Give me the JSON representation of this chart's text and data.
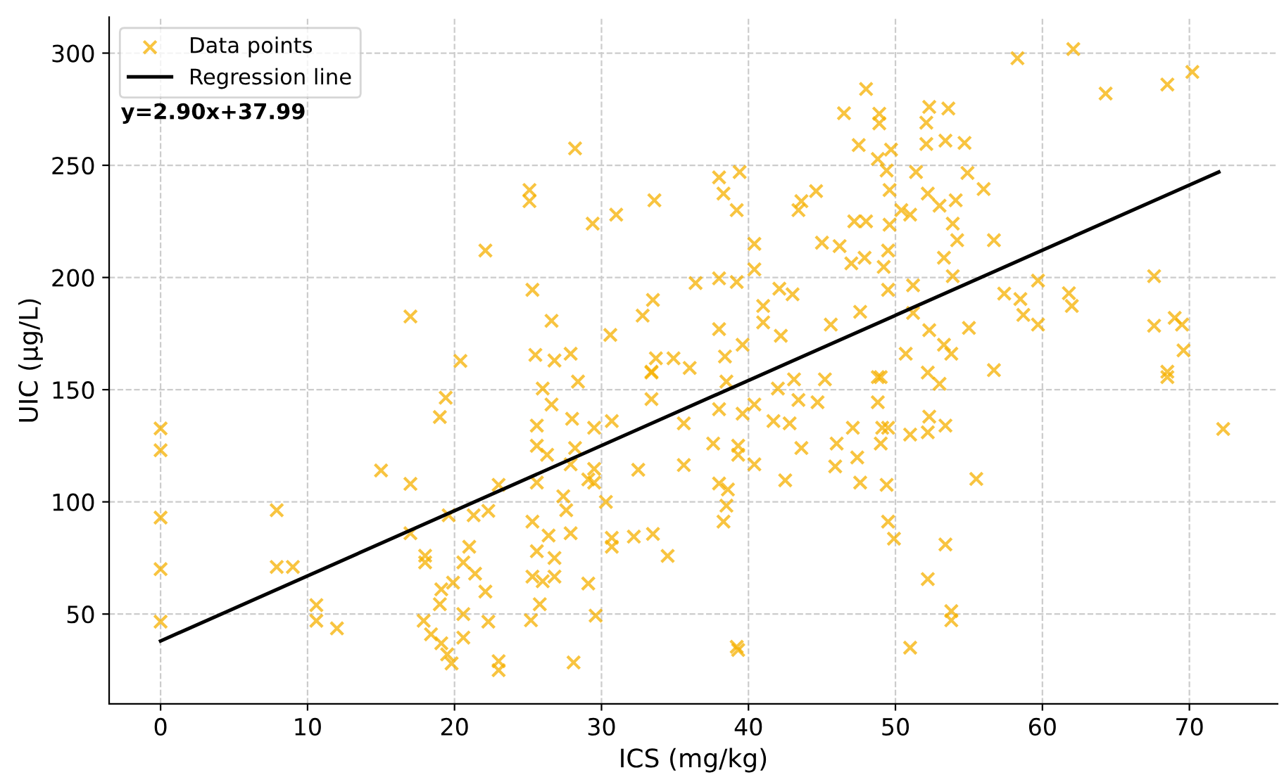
{
  "chart_data": {
    "type": "scatter",
    "xlabel": "ICS (mg/kg)",
    "ylabel": "UIC (μg/L)",
    "xlim": [
      -3.5,
      76
    ],
    "ylim": [
      10,
      316
    ],
    "xticks": [
      0,
      10,
      20,
      30,
      40,
      50,
      60,
      70
    ],
    "yticks": [
      50,
      100,
      150,
      200,
      250,
      300
    ],
    "grid": true,
    "legend": "top left",
    "annotations": [
      "y=2.90x+37.99"
    ],
    "series": [
      {
        "name": "Data points",
        "color": "#f5b000",
        "marker": "cross",
        "x": [
          17.0,
          22.1,
          20.4,
          25.1,
          25.1,
          0,
          0,
          0,
          0,
          0,
          7.9,
          7.9,
          9.0,
          10.6,
          10.6,
          12.0,
          15.0,
          17.0,
          17.0,
          19.0,
          19.4,
          18.0,
          18.0,
          23.0,
          19.6,
          21.3,
          22.3,
          21.0,
          20.6,
          21.4,
          22.1,
          19.9,
          19.1,
          19.0,
          20.6,
          17.9,
          18.4,
          19.1,
          19.5,
          19.8,
          20.6,
          22.3,
          23.0,
          23.0,
          28.2,
          29.4,
          31.0,
          33.6,
          38.0,
          39.4,
          38.3,
          39.2,
          40.4,
          40.4,
          36.4,
          38.0,
          39.2,
          25.3,
          43.4,
          43.6,
          44.6,
          42.1,
          43.0,
          45.0,
          46.2,
          47.0,
          47.9,
          47.2,
          48.0,
          46.5,
          48.0,
          48.9,
          48.9,
          47.5,
          48.8,
          49.4,
          49.6,
          49.6,
          49.5,
          49.2,
          49.5,
          49.7,
          51.2,
          47.6,
          45.6,
          42.2,
          41.0,
          41.0,
          38.0,
          39.6,
          38.4,
          36.0,
          34.9,
          33.7,
          33.4,
          33.5,
          32.8,
          30.6,
          28.4,
          26.6,
          25.5,
          27.9,
          26.8,
          52.3,
          52.1,
          52.1,
          51.4,
          52.2,
          50.4,
          51.0,
          50.7,
          52.3,
          26.0,
          26.6,
          25.6,
          25.6,
          26.3,
          28.0,
          28.2,
          27.9,
          29.5,
          29.5,
          29.5,
          29.1,
          25.6,
          30.7,
          33.4,
          33.4,
          35.6,
          32.5,
          35.6,
          30.3,
          27.4,
          27.6,
          25.3,
          27.9,
          26.4,
          25.6,
          26.8,
          25.3,
          26.8,
          26.0,
          25.8,
          25.2,
          28.1,
          29.1,
          29.6,
          30.7,
          30.7,
          32.2,
          33.5,
          34.5,
          38.0,
          38.6,
          38.5,
          38.3,
          39.2,
          39.3,
          37.6,
          38.0,
          39.3,
          39.3,
          40.4,
          39.6,
          40.4,
          38.5,
          42.0,
          43.1,
          41.7,
          42.8,
          43.6,
          42.5,
          43.4,
          44.7,
          45.2,
          46.0,
          45.9,
          47.1,
          47.4,
          47.6,
          48.8,
          49.0,
          49.5,
          49.4,
          49.5,
          49.9,
          49.0,
          51.0,
          52.2,
          52.2,
          51.0,
          52.3,
          52.2,
          58.3,
          62.1,
          64.3,
          68.5,
          70.2,
          72.3,
          67.6,
          67.6,
          69.0,
          69.5,
          69.6,
          68.5,
          68.5,
          61.8,
          62.0,
          59.7,
          59.7,
          58.5,
          58.7,
          57.4,
          56.7,
          56.0,
          56.7,
          55.5,
          55.0,
          54.9,
          54.7,
          53.6,
          53.4,
          54.1,
          53.9,
          54.2,
          53.0,
          53.3,
          53.9,
          51.2,
          53.3,
          53.8,
          53.0,
          48.8,
          49.1,
          53.4,
          53.4,
          53.8,
          53.8
        ],
        "values": [
          182.6,
          212,
          162.8,
          239,
          234,
          132.7,
          123,
          93,
          70,
          46.6,
          96.3,
          71,
          71,
          54,
          47,
          43.6,
          114,
          108,
          86,
          137.8,
          146.4,
          76,
          73,
          107.6,
          94,
          94,
          96,
          80,
          73,
          68,
          60,
          64,
          61,
          54.4,
          50,
          47,
          41,
          37,
          32,
          28,
          39.5,
          46.6,
          29,
          25,
          257.5,
          224,
          228,
          234.4,
          244.6,
          247,
          237.4,
          230,
          215,
          203.6,
          197.5,
          199.6,
          198,
          194.5,
          230,
          234,
          238.5,
          195,
          192.5,
          215.5,
          214,
          206.3,
          208.8,
          225,
          225,
          273.2,
          284,
          273,
          268.7,
          259,
          252.8,
          247.7,
          239,
          223.5,
          212,
          204.7,
          194.5,
          257,
          196.5,
          184.7,
          179,
          174,
          187.3,
          180,
          177,
          170,
          164.8,
          159.7,
          164,
          164,
          158,
          190,
          183,
          174.4,
          153.6,
          180.7,
          165.5,
          166,
          163,
          276,
          269,
          259.5,
          247,
          237.4,
          230,
          228,
          166,
          176.5,
          150.5,
          143.4,
          134,
          125,
          121,
          137,
          124,
          116.7,
          133,
          114.7,
          108.6,
          110,
          108.6,
          136,
          145.8,
          157.6,
          135,
          114.3,
          116.4,
          100,
          102.5,
          96.3,
          91.2,
          86,
          85,
          78,
          75,
          66.7,
          66.7,
          64.6,
          54.4,
          47.2,
          28.4,
          63.6,
          49.3,
          84,
          80,
          84.5,
          85.7,
          75.9,
          108.2,
          105.5,
          98.3,
          91.2,
          35.4,
          34,
          126,
          141.3,
          125,
          121,
          116.7,
          139.3,
          143.4,
          153.6,
          150.5,
          154.6,
          136,
          135,
          124,
          109.6,
          145.4,
          144.4,
          154.6,
          126,
          115.8,
          133,
          119.8,
          108.6,
          144.4,
          126,
          133,
          107.6,
          91.2,
          83.6,
          155.6,
          35,
          65.6,
          131,
          130,
          138,
          157.6,
          297.7,
          301.8,
          282,
          286,
          291.6,
          132.5,
          200.6,
          178.5,
          182,
          179,
          167.5,
          158,
          155.6,
          193,
          187.3,
          198.6,
          179,
          190.4,
          183.3,
          192.8,
          216.6,
          239.4,
          158.7,
          110.2,
          177.5,
          246.6,
          260,
          275.3,
          261,
          234.4,
          224,
          216.6,
          232,
          208.8,
          200.6,
          184.2,
          170,
          166,
          152.6,
          155.6,
          133,
          134,
          81,
          51.3,
          47.2
        ]
      },
      {
        "name": "Regression line",
        "type": "line",
        "color": "#000000",
        "marker": "none",
        "line_style": "solid",
        "x": [
          0,
          72
        ],
        "values": [
          38,
          247
        ]
      }
    ]
  }
}
